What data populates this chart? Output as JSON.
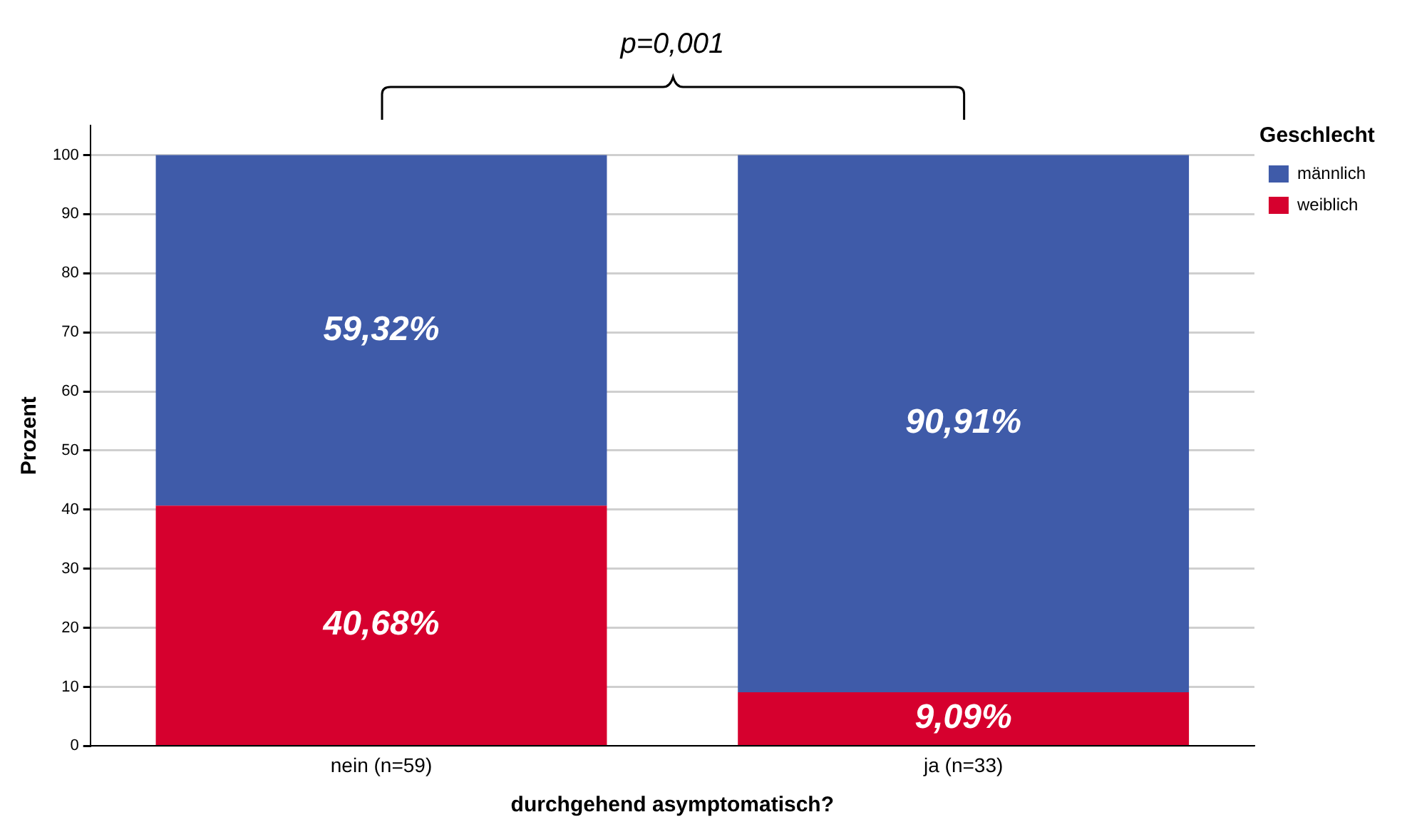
{
  "chart_data": {
    "type": "bar",
    "stacked": true,
    "xlabel": "durchgehend asymptomatisch?",
    "ylabel": "Prozent",
    "legend_title": "Geschlecht",
    "legend": "top right",
    "grid": "y",
    "categories": [
      "nein (n=59)",
      "ja (n=33)"
    ],
    "series": [
      {
        "name": "weiblich",
        "color": "#d6002e",
        "values": [
          40.68,
          9.09
        ],
        "value_labels": [
          "40,68%",
          "9,09%"
        ]
      },
      {
        "name": "männlich",
        "color": "#3f5ba9",
        "values": [
          59.32,
          90.91
        ],
        "value_labels": [
          "59,32%",
          "90,91%"
        ]
      }
    ],
    "ylim": [
      0,
      105
    ],
    "yticks": [
      0,
      10,
      20,
      30,
      40,
      50,
      60,
      70,
      80,
      90,
      100
    ],
    "annotations": [
      "p=0,001"
    ]
  }
}
